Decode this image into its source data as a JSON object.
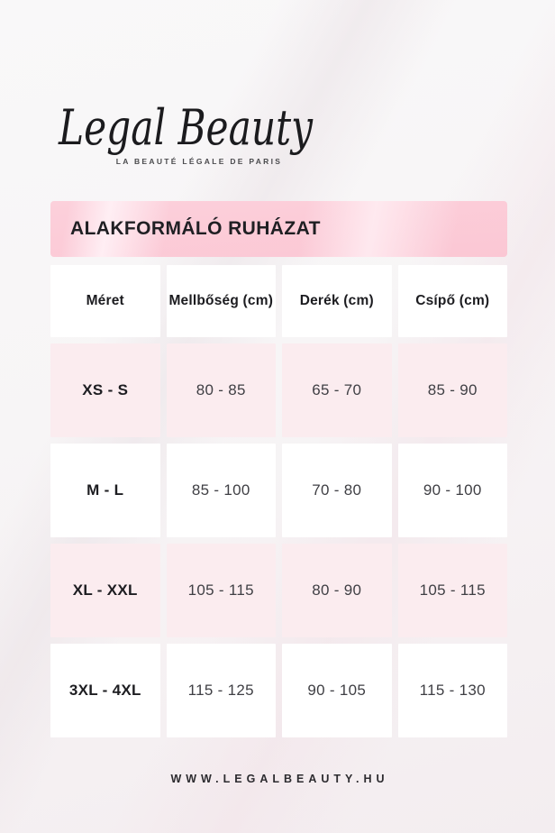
{
  "brand": {
    "logo_text": "Legal Beauty",
    "tagline": "LA BEAUTÉ LÉGALE DE PARIS"
  },
  "header": {
    "title": "ALAKFORMÁLÓ RUHÁZAT"
  },
  "table": {
    "columns": [
      "Méret",
      "Mellbőség (cm)",
      "Derék (cm)",
      "Csípő (cm)"
    ],
    "rows": [
      [
        "XS - S",
        "80 - 85",
        "65 - 70",
        "85 - 90"
      ],
      [
        "M - L",
        "85 - 100",
        "70 - 80",
        "90 - 100"
      ],
      [
        "XL - XXL",
        "105 - 115",
        "80 - 90",
        "105 - 115"
      ],
      [
        "3XL - 4XL",
        "115 - 125",
        "90 - 105",
        "115 - 130"
      ]
    ]
  },
  "footer": {
    "website": "WWW.LEGALBEAUTY.HU"
  },
  "colors": {
    "accent_pink": "#fbc8d4",
    "row_pink": "#fbecef",
    "page_background": "#f6f4f5",
    "text_dark": "#1d1d21"
  }
}
